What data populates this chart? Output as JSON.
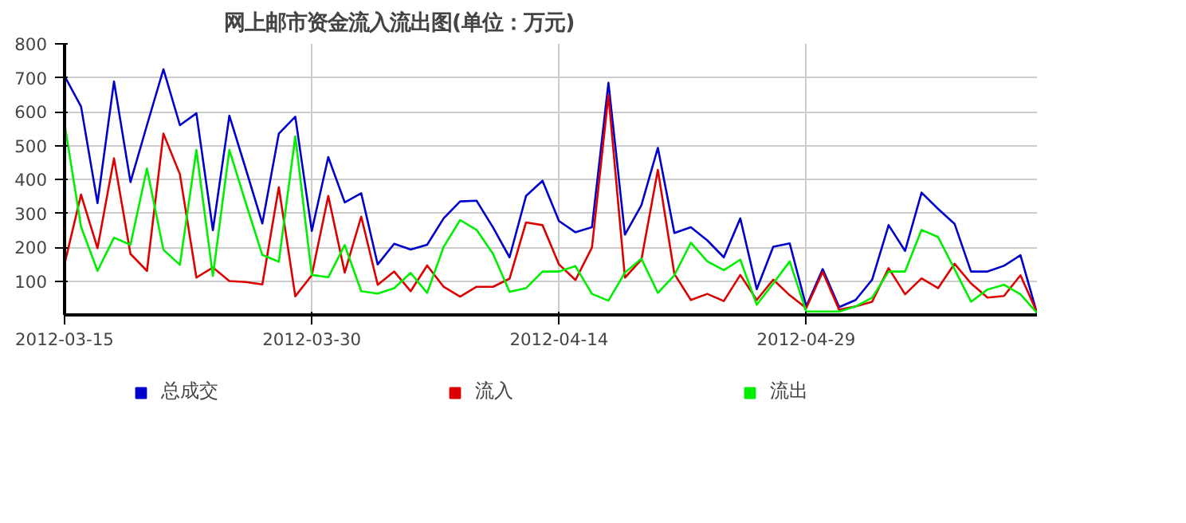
{
  "chart_data": {
    "type": "line",
    "title": "网上邮市资金流入流出图(单位：万元)",
    "x": [
      "2012-03-15",
      "2012-03-16",
      "2012-03-17",
      "2012-03-18",
      "2012-03-19",
      "2012-03-20",
      "2012-03-21",
      "2012-03-22",
      "2012-03-23",
      "2012-03-24",
      "2012-03-25",
      "2012-03-26",
      "2012-03-27",
      "2012-03-28",
      "2012-03-29",
      "2012-03-30",
      "2012-03-31",
      "2012-04-01",
      "2012-04-02",
      "2012-04-03",
      "2012-04-04",
      "2012-04-05",
      "2012-04-06",
      "2012-04-07",
      "2012-04-08",
      "2012-04-09",
      "2012-04-10",
      "2012-04-11",
      "2012-04-12",
      "2012-04-13",
      "2012-04-14",
      "2012-04-15",
      "2012-04-16",
      "2012-04-17",
      "2012-04-18",
      "2012-04-19",
      "2012-04-20",
      "2012-04-21",
      "2012-04-22",
      "2012-04-23",
      "2012-04-24",
      "2012-04-25",
      "2012-04-26",
      "2012-04-27",
      "2012-04-28",
      "2012-04-29",
      "2012-04-30",
      "2012-05-01",
      "2012-05-02",
      "2012-05-03",
      "2012-05-04",
      "2012-05-05",
      "2012-05-06",
      "2012-05-07",
      "2012-05-08",
      "2012-05-09",
      "2012-05-10",
      "2012-05-11",
      "2012-05-12",
      "2012-05-13"
    ],
    "series": [
      {
        "name": "总成交",
        "color": "#0000cc",
        "values": [
          705,
          615,
          330,
          689,
          392,
          560,
          725,
          560,
          595,
          250,
          588,
          430,
          270,
          535,
          585,
          248,
          466,
          332,
          359,
          149,
          210,
          193,
          207,
          285,
          335,
          337,
          258,
          170,
          351,
          396,
          277,
          244,
          259,
          685,
          237,
          324,
          493,
          242,
          259,
          220,
          170,
          285,
          76,
          201,
          211,
          25,
          135,
          23,
          44,
          104,
          265,
          189,
          361,
          313,
          269,
          128,
          128,
          145,
          176,
          5
        ]
      },
      {
        "name": "流入",
        "color": "#dd0000",
        "values": [
          150,
          355,
          197,
          462,
          180,
          130,
          535,
          415,
          110,
          140,
          100,
          97,
          90,
          377,
          55,
          117,
          351,
          125,
          290,
          89,
          128,
          70,
          146,
          83,
          54,
          83,
          83,
          107,
          273,
          265,
          149,
          103,
          199,
          649,
          110,
          163,
          428,
          121,
          44,
          62,
          41,
          118,
          44,
          104,
          58,
          20,
          127,
          15,
          25,
          39,
          138,
          61,
          108,
          79,
          151,
          93,
          51,
          56,
          117,
          8
        ]
      },
      {
        "name": "流出",
        "color": "#00ee00",
        "values": [
          565,
          260,
          130,
          228,
          207,
          432,
          192,
          148,
          487,
          115,
          487,
          330,
          177,
          157,
          527,
          118,
          111,
          206,
          70,
          63,
          79,
          124,
          65,
          201,
          280,
          251,
          180,
          68,
          79,
          128,
          128,
          144,
          62,
          42,
          125,
          166,
          65,
          117,
          213,
          158,
          132,
          163,
          30,
          93,
          158,
          10,
          10,
          10,
          25,
          51,
          128,
          128,
          251,
          230,
          135,
          39,
          75,
          89,
          61,
          6
        ]
      }
    ],
    "xlim": [
      "2012-03-15",
      "2012-05-13"
    ],
    "xticks": [
      "2012-03-15",
      "2012-03-30",
      "2012-04-14",
      "2012-04-29"
    ],
    "ylim": [
      0,
      800
    ],
    "yticks": [
      100,
      200,
      300,
      400,
      500,
      600,
      700,
      800
    ],
    "grid": true,
    "legend": "bottom",
    "marker": "none",
    "line_style": "solid"
  }
}
